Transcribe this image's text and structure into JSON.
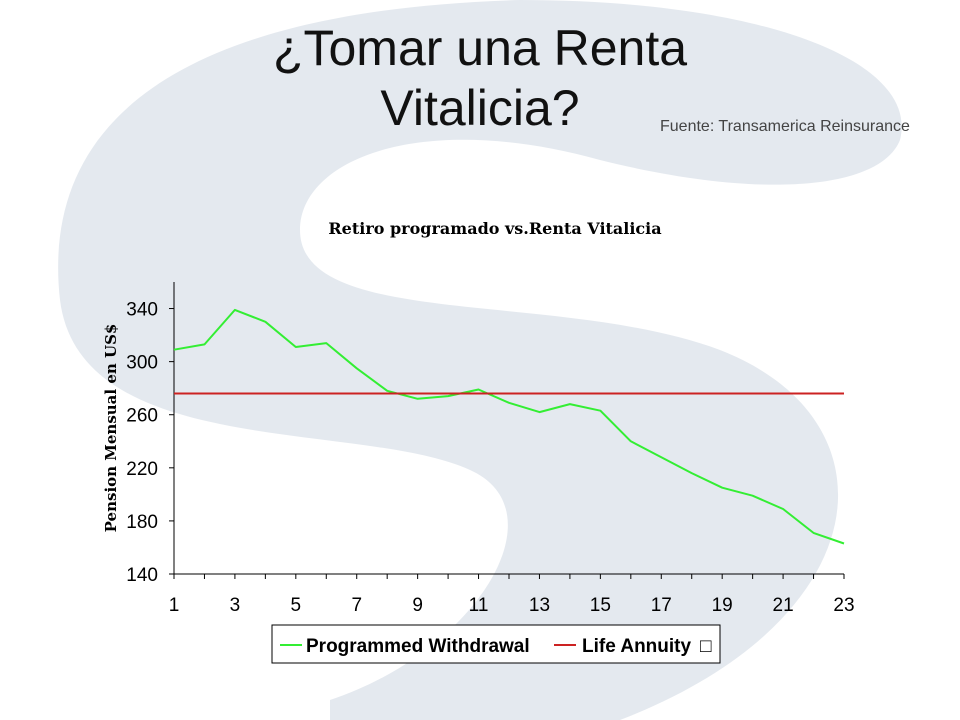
{
  "slide": {
    "title_line1": "¿Tomar una Renta",
    "title_line2": "Vitalicia?",
    "source": "Fuente: Transamerica Reinsurance"
  },
  "colors": {
    "programmed_withdrawal": "#33ee33",
    "life_annuity": "#cc2222",
    "watermark": "#dde3ea"
  },
  "chart_data": {
    "type": "line",
    "title": "Retiro programado vs.Renta Vitalicia",
    "xlabel": "",
    "ylabel": "Pension Mensual en US$",
    "x": [
      1,
      2,
      3,
      4,
      5,
      6,
      7,
      8,
      9,
      10,
      11,
      12,
      13,
      14,
      15,
      16,
      17,
      18,
      19,
      20,
      21,
      22,
      23
    ],
    "xticks": [
      "1",
      "3",
      "5",
      "7",
      "9",
      "11",
      "13",
      "15",
      "17",
      "19",
      "21",
      "23"
    ],
    "yticks": [
      "140",
      "180",
      "220",
      "260",
      "300",
      "340"
    ],
    "ylim": [
      140,
      360
    ],
    "xlim": [
      1,
      23
    ],
    "grid": false,
    "legend_position": "bottom",
    "series": [
      {
        "name": "Programmed Withdrawal",
        "values": [
          309,
          313,
          339,
          330,
          311,
          314,
          295,
          278,
          272,
          274,
          279,
          269,
          262,
          268,
          263,
          240,
          228,
          216,
          205,
          199,
          189,
          171,
          163
        ]
      },
      {
        "name": "Life Annuity",
        "values": [
          276,
          276,
          276,
          276,
          276,
          276,
          276,
          276,
          276,
          276,
          276,
          276,
          276,
          276,
          276,
          276,
          276,
          276,
          276,
          276,
          276,
          276,
          276
        ]
      }
    ],
    "legend_suffix_glyph": "□"
  }
}
